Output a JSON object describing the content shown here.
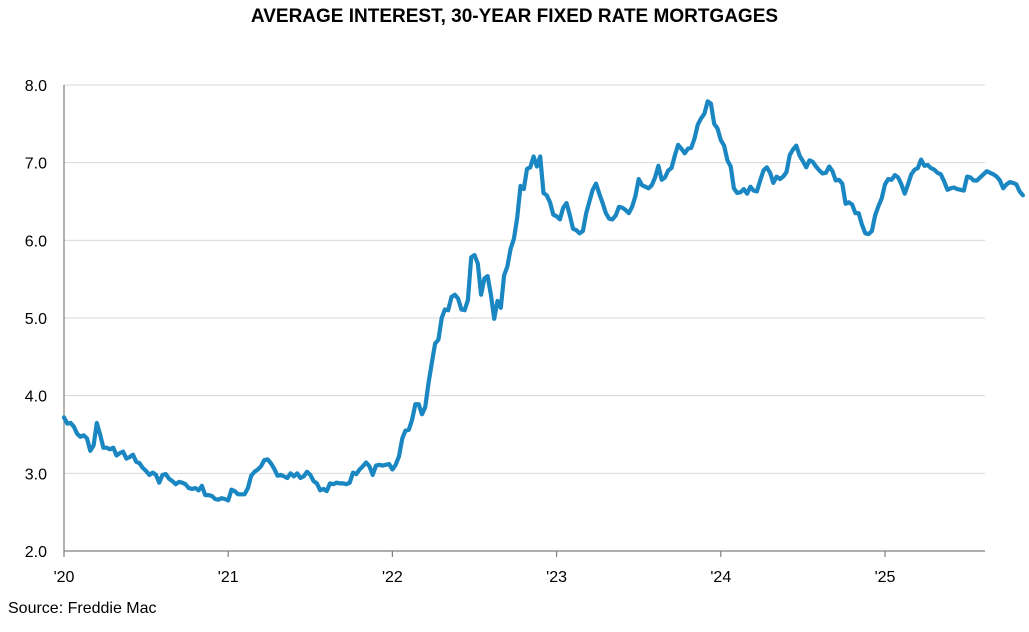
{
  "chart_data": {
    "type": "line",
    "title": "AVERAGE INTEREST, 30-YEAR FIXED RATE MORTGAGES",
    "source": "Source: Freddie Mac",
    "xlabel": "",
    "ylabel": "",
    "xlim": [
      2020.0,
      2025.62
    ],
    "ylim": [
      2.0,
      8.0
    ],
    "grid": true,
    "legend": "none",
    "colors": {
      "line": "#1a87c2",
      "grid": "#d9d9d9",
      "axis": "#7f7f7f"
    },
    "x_ticks": [
      {
        "value": 2020,
        "label": "'20"
      },
      {
        "value": 2021,
        "label": "'21"
      },
      {
        "value": 2022,
        "label": "'22"
      },
      {
        "value": 2023,
        "label": "'23"
      },
      {
        "value": 2024,
        "label": "'24"
      },
      {
        "value": 2025,
        "label": "'25"
      }
    ],
    "y_ticks": [
      {
        "value": 2.0,
        "label": "2.0"
      },
      {
        "value": 3.0,
        "label": "3.0"
      },
      {
        "value": 4.0,
        "label": "4.0"
      },
      {
        "value": 5.0,
        "label": "5.0"
      },
      {
        "value": 6.0,
        "label": "6.0"
      },
      {
        "value": 7.0,
        "label": "7.0"
      },
      {
        "value": 8.0,
        "label": "8.0"
      }
    ],
    "series": [
      {
        "points": [
          [
            2020.0,
            3.72
          ],
          [
            2020.02,
            3.64
          ],
          [
            2020.04,
            3.65
          ],
          [
            2020.06,
            3.6
          ],
          [
            2020.08,
            3.51
          ],
          [
            2020.1,
            3.47
          ],
          [
            2020.12,
            3.49
          ],
          [
            2020.14,
            3.45
          ],
          [
            2020.16,
            3.29
          ],
          [
            2020.18,
            3.36
          ],
          [
            2020.2,
            3.65
          ],
          [
            2020.22,
            3.5
          ],
          [
            2020.24,
            3.33
          ],
          [
            2020.26,
            3.33
          ],
          [
            2020.28,
            3.31
          ],
          [
            2020.3,
            3.33
          ],
          [
            2020.32,
            3.23
          ],
          [
            2020.34,
            3.26
          ],
          [
            2020.36,
            3.28
          ],
          [
            2020.38,
            3.19
          ],
          [
            2020.4,
            3.21
          ],
          [
            2020.42,
            3.24
          ],
          [
            2020.44,
            3.15
          ],
          [
            2020.46,
            3.13
          ],
          [
            2020.48,
            3.07
          ],
          [
            2020.5,
            3.03
          ],
          [
            2020.52,
            2.98
          ],
          [
            2020.54,
            3.01
          ],
          [
            2020.56,
            2.98
          ],
          [
            2020.58,
            2.88
          ],
          [
            2020.6,
            2.98
          ],
          [
            2020.62,
            2.99
          ],
          [
            2020.64,
            2.93
          ],
          [
            2020.66,
            2.9
          ],
          [
            2020.68,
            2.86
          ],
          [
            2020.7,
            2.89
          ],
          [
            2020.72,
            2.88
          ],
          [
            2020.74,
            2.86
          ],
          [
            2020.76,
            2.81
          ],
          [
            2020.78,
            2.8
          ],
          [
            2020.8,
            2.81
          ],
          [
            2020.82,
            2.78
          ],
          [
            2020.84,
            2.84
          ],
          [
            2020.86,
            2.72
          ],
          [
            2020.88,
            2.72
          ],
          [
            2020.9,
            2.71
          ],
          [
            2020.92,
            2.67
          ],
          [
            2020.94,
            2.66
          ],
          [
            2020.96,
            2.68
          ],
          [
            2020.98,
            2.67
          ],
          [
            2021.0,
            2.65
          ],
          [
            2021.02,
            2.79
          ],
          [
            2021.04,
            2.77
          ],
          [
            2021.06,
            2.73
          ],
          [
            2021.08,
            2.73
          ],
          [
            2021.1,
            2.73
          ],
          [
            2021.12,
            2.81
          ],
          [
            2021.14,
            2.97
          ],
          [
            2021.16,
            3.02
          ],
          [
            2021.18,
            3.05
          ],
          [
            2021.2,
            3.09
          ],
          [
            2021.22,
            3.17
          ],
          [
            2021.24,
            3.18
          ],
          [
            2021.26,
            3.13
          ],
          [
            2021.28,
            3.06
          ],
          [
            2021.3,
            2.97
          ],
          [
            2021.32,
            2.98
          ],
          [
            2021.34,
            2.96
          ],
          [
            2021.36,
            2.94
          ],
          [
            2021.38,
            3.0
          ],
          [
            2021.4,
            2.96
          ],
          [
            2021.42,
            3.0
          ],
          [
            2021.44,
            2.94
          ],
          [
            2021.46,
            2.96
          ],
          [
            2021.48,
            3.02
          ],
          [
            2021.5,
            2.98
          ],
          [
            2021.52,
            2.9
          ],
          [
            2021.54,
            2.87
          ],
          [
            2021.56,
            2.78
          ],
          [
            2021.58,
            2.8
          ],
          [
            2021.6,
            2.77
          ],
          [
            2021.62,
            2.87
          ],
          [
            2021.64,
            2.86
          ],
          [
            2021.66,
            2.88
          ],
          [
            2021.68,
            2.87
          ],
          [
            2021.7,
            2.87
          ],
          [
            2021.72,
            2.86
          ],
          [
            2021.74,
            2.88
          ],
          [
            2021.76,
            3.01
          ],
          [
            2021.78,
            2.99
          ],
          [
            2021.8,
            3.05
          ],
          [
            2021.82,
            3.09
          ],
          [
            2021.84,
            3.14
          ],
          [
            2021.86,
            3.09
          ],
          [
            2021.88,
            2.98
          ],
          [
            2021.9,
            3.1
          ],
          [
            2021.92,
            3.11
          ],
          [
            2021.94,
            3.1
          ],
          [
            2021.96,
            3.11
          ],
          [
            2021.98,
            3.12
          ],
          [
            2022.0,
            3.05
          ],
          [
            2022.02,
            3.11
          ],
          [
            2022.04,
            3.22
          ],
          [
            2022.06,
            3.45
          ],
          [
            2022.08,
            3.55
          ],
          [
            2022.1,
            3.56
          ],
          [
            2022.12,
            3.69
          ],
          [
            2022.14,
            3.89
          ],
          [
            2022.16,
            3.89
          ],
          [
            2022.18,
            3.76
          ],
          [
            2022.2,
            3.85
          ],
          [
            2022.22,
            4.16
          ],
          [
            2022.24,
            4.42
          ],
          [
            2022.26,
            4.67
          ],
          [
            2022.28,
            4.72
          ],
          [
            2022.3,
            5.0
          ],
          [
            2022.32,
            5.11
          ],
          [
            2022.34,
            5.1
          ],
          [
            2022.36,
            5.27
          ],
          [
            2022.38,
            5.3
          ],
          [
            2022.4,
            5.25
          ],
          [
            2022.42,
            5.11
          ],
          [
            2022.44,
            5.1
          ],
          [
            2022.46,
            5.23
          ],
          [
            2022.48,
            5.78
          ],
          [
            2022.5,
            5.81
          ],
          [
            2022.52,
            5.7
          ],
          [
            2022.54,
            5.3
          ],
          [
            2022.56,
            5.51
          ],
          [
            2022.58,
            5.54
          ],
          [
            2022.6,
            5.3
          ],
          [
            2022.62,
            4.99
          ],
          [
            2022.64,
            5.22
          ],
          [
            2022.66,
            5.13
          ],
          [
            2022.68,
            5.55
          ],
          [
            2022.7,
            5.66
          ],
          [
            2022.72,
            5.89
          ],
          [
            2022.74,
            6.02
          ],
          [
            2022.76,
            6.29
          ],
          [
            2022.78,
            6.7
          ],
          [
            2022.8,
            6.66
          ],
          [
            2022.82,
            6.92
          ],
          [
            2022.84,
            6.94
          ],
          [
            2022.86,
            7.08
          ],
          [
            2022.88,
            6.95
          ],
          [
            2022.9,
            7.08
          ],
          [
            2022.92,
            6.61
          ],
          [
            2022.94,
            6.58
          ],
          [
            2022.96,
            6.49
          ],
          [
            2022.98,
            6.33
          ],
          [
            2023.0,
            6.31
          ],
          [
            2023.02,
            6.27
          ],
          [
            2023.04,
            6.42
          ],
          [
            2023.06,
            6.48
          ],
          [
            2023.08,
            6.33
          ],
          [
            2023.1,
            6.15
          ],
          [
            2023.12,
            6.13
          ],
          [
            2023.14,
            6.09
          ],
          [
            2023.16,
            6.12
          ],
          [
            2023.18,
            6.35
          ],
          [
            2023.2,
            6.5
          ],
          [
            2023.22,
            6.65
          ],
          [
            2023.24,
            6.73
          ],
          [
            2023.26,
            6.6
          ],
          [
            2023.28,
            6.48
          ],
          [
            2023.3,
            6.35
          ],
          [
            2023.32,
            6.28
          ],
          [
            2023.34,
            6.27
          ],
          [
            2023.36,
            6.32
          ],
          [
            2023.38,
            6.43
          ],
          [
            2023.4,
            6.42
          ],
          [
            2023.42,
            6.39
          ],
          [
            2023.44,
            6.35
          ],
          [
            2023.46,
            6.43
          ],
          [
            2023.48,
            6.57
          ],
          [
            2023.5,
            6.79
          ],
          [
            2023.52,
            6.71
          ],
          [
            2023.54,
            6.69
          ],
          [
            2023.56,
            6.67
          ],
          [
            2023.58,
            6.71
          ],
          [
            2023.6,
            6.81
          ],
          [
            2023.62,
            6.96
          ],
          [
            2023.64,
            6.78
          ],
          [
            2023.66,
            6.81
          ],
          [
            2023.68,
            6.9
          ],
          [
            2023.7,
            6.93
          ],
          [
            2023.72,
            7.09
          ],
          [
            2023.74,
            7.23
          ],
          [
            2023.76,
            7.18
          ],
          [
            2023.78,
            7.12
          ],
          [
            2023.8,
            7.18
          ],
          [
            2023.82,
            7.19
          ],
          [
            2023.84,
            7.31
          ],
          [
            2023.86,
            7.49
          ],
          [
            2023.88,
            7.57
          ],
          [
            2023.9,
            7.63
          ],
          [
            2023.92,
            7.79
          ],
          [
            2023.94,
            7.76
          ],
          [
            2023.96,
            7.5
          ],
          [
            2023.98,
            7.44
          ],
          [
            2024.0,
            7.29
          ],
          [
            2024.02,
            7.22
          ],
          [
            2024.04,
            7.03
          ],
          [
            2024.06,
            6.95
          ],
          [
            2024.08,
            6.67
          ],
          [
            2024.1,
            6.61
          ],
          [
            2024.12,
            6.62
          ],
          [
            2024.14,
            6.66
          ],
          [
            2024.16,
            6.6
          ],
          [
            2024.18,
            6.69
          ],
          [
            2024.2,
            6.64
          ],
          [
            2024.22,
            6.63
          ],
          [
            2024.24,
            6.77
          ],
          [
            2024.26,
            6.9
          ],
          [
            2024.28,
            6.94
          ],
          [
            2024.3,
            6.87
          ],
          [
            2024.32,
            6.74
          ],
          [
            2024.34,
            6.82
          ],
          [
            2024.36,
            6.79
          ],
          [
            2024.38,
            6.82
          ],
          [
            2024.4,
            6.88
          ],
          [
            2024.42,
            7.1
          ],
          [
            2024.44,
            7.17
          ],
          [
            2024.46,
            7.22
          ],
          [
            2024.48,
            7.09
          ],
          [
            2024.5,
            7.02
          ],
          [
            2024.52,
            6.94
          ],
          [
            2024.54,
            7.03
          ],
          [
            2024.56,
            7.01
          ],
          [
            2024.58,
            6.95
          ],
          [
            2024.6,
            6.9
          ],
          [
            2024.62,
            6.86
          ],
          [
            2024.64,
            6.87
          ],
          [
            2024.66,
            6.95
          ],
          [
            2024.68,
            6.89
          ],
          [
            2024.7,
            6.77
          ],
          [
            2024.72,
            6.78
          ],
          [
            2024.74,
            6.73
          ],
          [
            2024.76,
            6.47
          ],
          [
            2024.78,
            6.49
          ],
          [
            2024.8,
            6.46
          ],
          [
            2024.82,
            6.35
          ],
          [
            2024.84,
            6.35
          ],
          [
            2024.86,
            6.2
          ],
          [
            2024.88,
            6.09
          ],
          [
            2024.9,
            6.08
          ],
          [
            2024.92,
            6.12
          ],
          [
            2024.94,
            6.32
          ],
          [
            2024.96,
            6.44
          ],
          [
            2024.98,
            6.54
          ],
          [
            2025.0,
            6.72
          ],
          [
            2025.02,
            6.79
          ],
          [
            2025.04,
            6.78
          ],
          [
            2025.06,
            6.84
          ],
          [
            2025.08,
            6.81
          ],
          [
            2025.1,
            6.72
          ],
          [
            2025.12,
            6.6
          ],
          [
            2025.14,
            6.72
          ],
          [
            2025.16,
            6.85
          ],
          [
            2025.18,
            6.91
          ],
          [
            2025.2,
            6.93
          ],
          [
            2025.22,
            7.04
          ],
          [
            2025.24,
            6.96
          ],
          [
            2025.26,
            6.97
          ],
          [
            2025.28,
            6.93
          ],
          [
            2025.3,
            6.91
          ],
          [
            2025.32,
            6.87
          ],
          [
            2025.34,
            6.85
          ],
          [
            2025.36,
            6.76
          ],
          [
            2025.38,
            6.65
          ],
          [
            2025.4,
            6.67
          ],
          [
            2025.42,
            6.68
          ],
          [
            2025.44,
            6.66
          ],
          [
            2025.46,
            6.65
          ],
          [
            2025.48,
            6.64
          ],
          [
            2025.5,
            6.82
          ],
          [
            2025.52,
            6.81
          ],
          [
            2025.54,
            6.77
          ],
          [
            2025.56,
            6.77
          ],
          [
            2025.58,
            6.81
          ],
          [
            2025.6,
            6.85
          ],
          [
            2025.62,
            6.89
          ],
          [
            2025.64,
            6.87
          ],
          [
            2025.66,
            6.85
          ],
          [
            2025.68,
            6.82
          ],
          [
            2025.7,
            6.77
          ],
          [
            2025.72,
            6.67
          ],
          [
            2025.74,
            6.72
          ],
          [
            2025.76,
            6.75
          ],
          [
            2025.78,
            6.74
          ],
          [
            2025.8,
            6.72
          ],
          [
            2025.82,
            6.63
          ],
          [
            2025.84,
            6.58
          ]
        ]
      }
    ]
  }
}
